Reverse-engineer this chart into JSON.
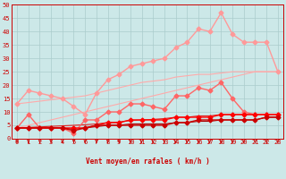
{
  "background_color": "#cce8e8",
  "grid_color": "#aacccc",
  "xlabel": "Vent moyen/en rafales ( km/h )",
  "xlim": [
    -0.5,
    23.5
  ],
  "ylim": [
    0,
    50
  ],
  "yticks": [
    0,
    5,
    10,
    15,
    20,
    25,
    30,
    35,
    40,
    45,
    50
  ],
  "xticks": [
    0,
    1,
    2,
    3,
    4,
    5,
    6,
    7,
    8,
    9,
    10,
    11,
    12,
    13,
    14,
    15,
    16,
    17,
    18,
    19,
    20,
    21,
    22,
    23
  ],
  "series": [
    {
      "color": "#ffaaaa",
      "linewidth": 0.8,
      "marker": null,
      "y": [
        13,
        13.5,
        14,
        14.5,
        15,
        15.5,
        16,
        17,
        18,
        19,
        20,
        21,
        21.5,
        22,
        23,
        23.5,
        24,
        24,
        24.5,
        25,
        25,
        25,
        25,
        25
      ]
    },
    {
      "color": "#ffaaaa",
      "linewidth": 0.8,
      "marker": null,
      "y": [
        4,
        5,
        6,
        7,
        8,
        9,
        10,
        11,
        12,
        13,
        14,
        15,
        16,
        17,
        18,
        19,
        20,
        21,
        22,
        23,
        24,
        25,
        25,
        25
      ]
    },
    {
      "color": "#ff9999",
      "linewidth": 1.0,
      "marker": "D",
      "markersize": 2.5,
      "y": [
        13,
        18,
        17,
        16,
        15,
        12,
        9,
        17,
        22,
        24,
        27,
        28,
        29,
        30,
        34,
        36,
        41,
        40,
        47,
        39,
        36,
        36,
        36,
        25
      ]
    },
    {
      "color": "#ff6666",
      "linewidth": 1.0,
      "marker": "D",
      "markersize": 2.5,
      "y": [
        4,
        9,
        4,
        4,
        4,
        2,
        7,
        7,
        10,
        10,
        13,
        13,
        12,
        11,
        16,
        16,
        19,
        18,
        21,
        15,
        10,
        9,
        9,
        9
      ]
    },
    {
      "color": "#dd2222",
      "linewidth": 0.8,
      "marker": null,
      "y": [
        4,
        4.2,
        4.4,
        4.6,
        4.8,
        5,
        5.2,
        5.5,
        6,
        6.2,
        6.8,
        7,
        7.2,
        7.5,
        8,
        8,
        8.5,
        8.5,
        9,
        9,
        9,
        9,
        9,
        9
      ]
    },
    {
      "color": "#ff0000",
      "linewidth": 1.0,
      "marker": "D",
      "markersize": 2.5,
      "y": [
        4,
        4,
        4,
        4,
        4,
        4,
        4,
        5,
        6,
        6,
        7,
        7,
        7,
        7,
        8,
        8,
        8,
        8,
        9,
        9,
        9,
        9,
        9,
        9
      ]
    },
    {
      "color": "#cc0000",
      "linewidth": 1.0,
      "marker": "D",
      "markersize": 2.5,
      "y": [
        4,
        4,
        4,
        4,
        4,
        3,
        4,
        5,
        5,
        5,
        5,
        5,
        5,
        5,
        6,
        6,
        7,
        7,
        7,
        7,
        7,
        7,
        8,
        8
      ]
    },
    {
      "color": "#aa0000",
      "linewidth": 0.8,
      "marker": null,
      "y": [
        4,
        4,
        4,
        4,
        4,
        3.5,
        4,
        4.5,
        5,
        5,
        5.5,
        5.5,
        5.5,
        5.5,
        6,
        6,
        6.5,
        6.5,
        7,
        7,
        7,
        7,
        8,
        8
      ]
    }
  ],
  "arrow_color": "#cc0000",
  "xlabel_fontsize": 5.5,
  "tick_fontsize": 5,
  "tick_color": "#cc0000"
}
